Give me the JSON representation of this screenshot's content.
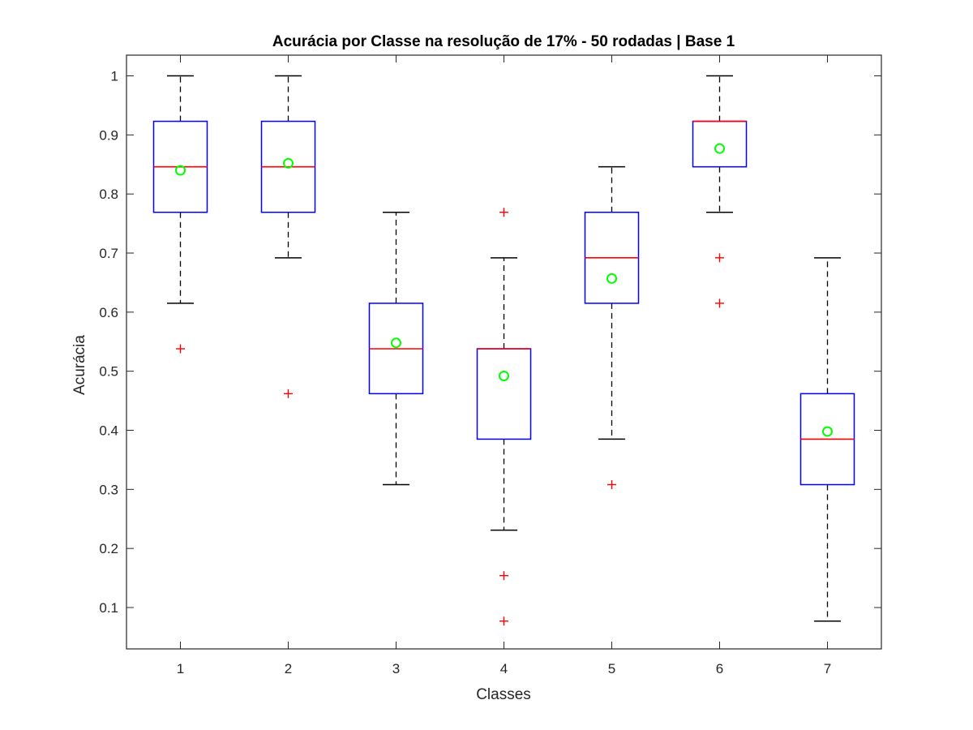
{
  "chart_data": {
    "type": "box",
    "title": "Acurácia por Classe na resolução de 17% - 50 rodadas | Base 1",
    "xlabel": "Classes",
    "ylabel": "Acurácia",
    "categories": [
      "1",
      "2",
      "3",
      "4",
      "5",
      "6",
      "7"
    ],
    "ylim": [
      0.03,
      1.035
    ],
    "yticks": [
      0.1,
      0.2,
      0.3,
      0.4,
      0.5,
      0.6,
      0.7,
      0.8,
      0.9,
      1
    ],
    "ytick_labels": [
      "0.1",
      "0.2",
      "0.3",
      "0.4",
      "0.5",
      "0.6",
      "0.7",
      "0.8",
      "0.9",
      "1"
    ],
    "grid": false,
    "colors": {
      "box": "#0000ff",
      "median": "#ff0000",
      "whisker": "#000000",
      "outlier": "#ff0000",
      "mean": "#00ff00",
      "axes": "#262626"
    },
    "boxes": [
      {
        "category": "1",
        "whisker_low": 0.615,
        "q1": 0.769,
        "median": 0.846,
        "q3": 0.923,
        "whisker_high": 1.0,
        "mean": 0.84,
        "outliers": [
          0.538
        ]
      },
      {
        "category": "2",
        "whisker_low": 0.692,
        "q1": 0.769,
        "median": 0.846,
        "q3": 0.923,
        "whisker_high": 1.0,
        "mean": 0.852,
        "outliers": [
          0.462
        ]
      },
      {
        "category": "3",
        "whisker_low": 0.308,
        "q1": 0.462,
        "median": 0.538,
        "q3": 0.615,
        "whisker_high": 0.769,
        "mean": 0.548,
        "outliers": []
      },
      {
        "category": "4",
        "whisker_low": 0.231,
        "q1": 0.385,
        "median": 0.538,
        "q3": 0.538,
        "whisker_high": 0.692,
        "mean": 0.492,
        "outliers": [
          0.769,
          0.154,
          0.077
        ]
      },
      {
        "category": "5",
        "whisker_low": 0.385,
        "q1": 0.615,
        "median": 0.692,
        "q3": 0.769,
        "whisker_high": 0.846,
        "mean": 0.657,
        "outliers": [
          0.308
        ]
      },
      {
        "category": "6",
        "whisker_low": 0.769,
        "q1": 0.846,
        "median": 0.923,
        "q3": 0.923,
        "whisker_high": 1.0,
        "mean": 0.877,
        "outliers": [
          0.692,
          0.615
        ]
      },
      {
        "category": "7",
        "whisker_low": 0.077,
        "q1": 0.308,
        "median": 0.385,
        "q3": 0.462,
        "whisker_high": 0.692,
        "mean": 0.398,
        "outliers": []
      }
    ]
  }
}
